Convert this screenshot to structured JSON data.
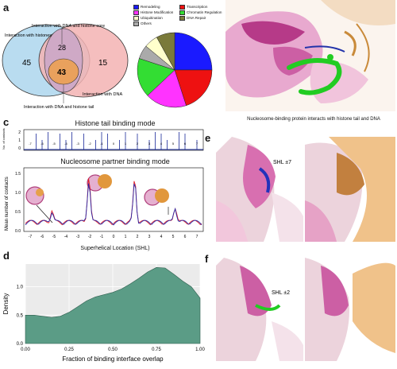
{
  "panels": {
    "a": {
      "letter": "a",
      "venn": {
        "labels": {
          "histones": "Interaction with histones",
          "dna_histone_core": "Interaction with DNA and histone core",
          "dna": "Interaction with DNA",
          "dna_histone_tail": "Interaction with DNA and histone tail"
        },
        "counts": {
          "histones_only": "45",
          "dna_and_core": "28",
          "dna_and_tail": "43",
          "dna_only": "15"
        },
        "colors": {
          "histones": "#b9dcf0",
          "dna": "#f3b3b3",
          "overlap": "#cfa9c6",
          "tail": "#e9a15d"
        }
      },
      "legend": [
        {
          "label": "Remodeling",
          "color": "#1a1aff"
        },
        {
          "label": "Histone Modification",
          "color": "#ff33ff"
        },
        {
          "label": "Ubiquitination",
          "color": "#ffffcc"
        },
        {
          "label": "Others",
          "color": "#aaaaaa"
        },
        {
          "label": "Transcription",
          "color": "#ee1111"
        },
        {
          "label": "Chromatin Regulation",
          "color": "#33dd33"
        },
        {
          "label": "DNA Repair",
          "color": "#7a7a3a"
        }
      ],
      "pie": [
        {
          "label": "Remodeling",
          "value": 25,
          "color": "#1a1aff"
        },
        {
          "label": "Transcription",
          "value": 20,
          "color": "#ee1111"
        },
        {
          "label": "Histone Modification",
          "value": 18,
          "color": "#ff33ff"
        },
        {
          "label": "Chromatin Regulation",
          "value": 17,
          "color": "#33dd33"
        },
        {
          "label": "Others",
          "value": 6,
          "color": "#aaaaaa"
        },
        {
          "label": "Ubiquitination",
          "value": 6,
          "color": "#ffffcc"
        },
        {
          "label": "DNA Repair",
          "value": 8,
          "color": "#7a7a3a"
        }
      ]
    },
    "b": {
      "letter": "b",
      "caption": "Nucleosome-binding protein interacts with histone tail and DNA"
    },
    "c": {
      "letter": "c",
      "top_title": "Histone tail binding mode",
      "bottom_title": "Nucleosome partner binding mode",
      "top_ylabel": "No. of contacts",
      "ylabel": "Mean number of contacts",
      "xlabel": "Superhelical Location (SHL)",
      "top_yticks": [
        "2",
        "1",
        "0"
      ],
      "bottom_yticks": [
        "1.5",
        "1.0",
        "0.5",
        "0.0"
      ],
      "xticks": [
        "-7",
        "-6",
        "-5",
        "-4",
        "-3",
        "-2",
        "-1",
        "0",
        "1",
        "2",
        "3",
        "4",
        "5",
        "6",
        "7"
      ]
    },
    "d": {
      "letter": "d",
      "chart_data": {
        "type": "area",
        "xlabel": "Fraction of binding interface overlap",
        "ylabel": "Density",
        "xlim": [
          0,
          1
        ],
        "ylim": [
          0,
          1.4
        ],
        "xticks": [
          "0.00",
          "0.25",
          "0.50",
          "0.75",
          "1.00"
        ],
        "yticks": [
          "0.0",
          "0.5",
          "1.0"
        ],
        "x": [
          0.0,
          0.05,
          0.1,
          0.15,
          0.2,
          0.25,
          0.3,
          0.35,
          0.4,
          0.45,
          0.5,
          0.55,
          0.6,
          0.65,
          0.7,
          0.75,
          0.8,
          0.85,
          0.9,
          0.95,
          1.0
        ],
        "y": [
          0.5,
          0.5,
          0.48,
          0.46,
          0.48,
          0.55,
          0.65,
          0.75,
          0.82,
          0.86,
          0.9,
          0.96,
          1.05,
          1.15,
          1.26,
          1.34,
          1.33,
          1.22,
          1.1,
          1.0,
          0.8
        ],
        "fill_color": "#5b9c86"
      }
    },
    "e": {
      "letter": "e",
      "annotation": "SHL ±7"
    },
    "f": {
      "letter": "f",
      "annotation": "SHL ±2"
    }
  }
}
